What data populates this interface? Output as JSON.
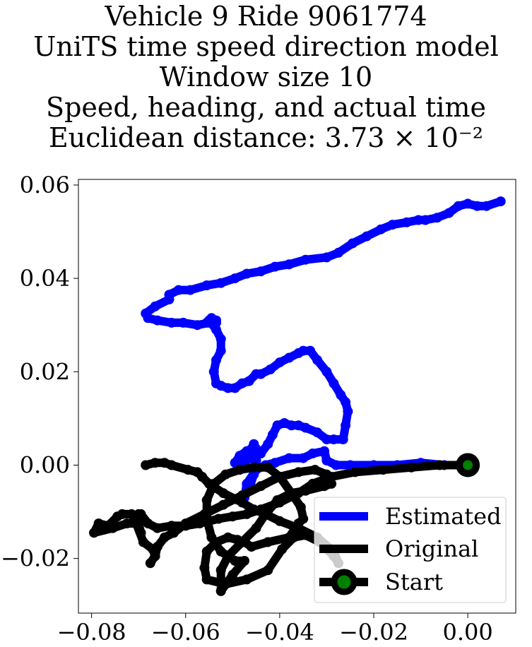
{
  "chart_data": {
    "type": "line",
    "title_lines": [
      "Vehicle 9 Ride 9061774",
      "UniTS time speed direction model",
      "Window size 10",
      "Speed, heading, and actual time",
      "Euclidean distance: 3.73 × 10⁻²"
    ],
    "xlabel": "",
    "ylabel": "",
    "xlim": [
      -0.0828,
      0.0102
    ],
    "ylim": [
      -0.0317,
      0.0612
    ],
    "xticks": [
      -0.08,
      -0.06,
      -0.04,
      -0.02,
      0.0
    ],
    "xtick_labels": [
      "−0.08",
      "−0.06",
      "−0.04",
      "−0.02",
      "0.00"
    ],
    "yticks": [
      -0.02,
      0.0,
      0.02,
      0.04,
      0.06
    ],
    "ytick_labels": [
      "−0.02",
      "0.00",
      "0.02",
      "0.04",
      "0.06"
    ],
    "grid": false,
    "legend_position": "bottom-right",
    "series": [
      {
        "name": "Estimated",
        "color": "#0000ff",
        "x": [
          0.0,
          -0.005,
          -0.01,
          -0.015,
          -0.02,
          -0.025,
          -0.028,
          -0.03,
          -0.0305,
          -0.033,
          -0.035,
          -0.038,
          -0.041,
          -0.043,
          -0.045,
          -0.047,
          -0.0475,
          -0.0465,
          -0.0455,
          -0.045,
          -0.045,
          -0.0455,
          -0.046,
          -0.047,
          -0.0485,
          -0.0495,
          -0.049,
          -0.048,
          -0.046,
          -0.044,
          -0.0425,
          -0.0415,
          -0.0405,
          -0.039,
          -0.0375,
          -0.036,
          -0.0345,
          -0.032,
          -0.03,
          -0.0285,
          -0.0265,
          -0.026,
          -0.0255,
          -0.026,
          -0.027,
          -0.0285,
          -0.03,
          -0.032,
          -0.0335,
          -0.035,
          -0.036,
          -0.038,
          -0.04,
          -0.042,
          -0.044,
          -0.045,
          -0.0465,
          -0.048,
          -0.0495,
          -0.051,
          -0.0525,
          -0.0535,
          -0.054,
          -0.0535,
          -0.0525,
          -0.0525,
          -0.0535,
          -0.055,
          -0.0555,
          -0.0545,
          -0.0545,
          -0.0535,
          -0.0535,
          -0.055,
          -0.0575,
          -0.0605,
          -0.063,
          -0.066,
          -0.068,
          -0.0685,
          -0.0665,
          -0.0635,
          -0.0635,
          -0.0615,
          -0.059,
          -0.0555,
          -0.0525,
          -0.0495,
          -0.047,
          -0.044,
          -0.041,
          -0.038,
          -0.0345,
          -0.03,
          -0.0275,
          -0.0245,
          -0.0215,
          -0.0185,
          -0.016,
          -0.013,
          -0.0105,
          -0.009,
          -0.0065,
          -0.004,
          -0.002,
          0.0,
          0.002,
          0.004,
          0.007
        ],
        "y": [
          0.0,
          0.0,
          0.0005,
          0.0,
          0.0,
          0.0,
          0.0,
          0.001,
          0.003,
          0.0025,
          0.0015,
          0.0015,
          0.0005,
          0.0,
          -0.001,
          -0.004,
          -0.007,
          -0.005,
          -0.002,
          0.001,
          0.0035,
          0.0045,
          0.0035,
          0.003,
          0.002,
          0.0005,
          0.0,
          0.0005,
          0.0015,
          0.0025,
          0.0045,
          0.0065,
          0.0085,
          0.009,
          0.0085,
          0.0085,
          0.008,
          0.007,
          0.0055,
          0.0055,
          0.0055,
          0.0085,
          0.0115,
          0.0135,
          0.015,
          0.0175,
          0.02,
          0.0225,
          0.0245,
          0.0245,
          0.024,
          0.023,
          0.022,
          0.0205,
          0.0195,
          0.0195,
          0.018,
          0.0175,
          0.0165,
          0.0165,
          0.017,
          0.0175,
          0.02,
          0.0225,
          0.0245,
          0.027,
          0.029,
          0.031,
          0.0305,
          0.031,
          0.0315,
          0.031,
          0.0305,
          0.0305,
          0.03,
          0.0305,
          0.0305,
          0.031,
          0.0315,
          0.0325,
          0.034,
          0.0355,
          0.0365,
          0.0375,
          0.0375,
          0.0385,
          0.039,
          0.04,
          0.041,
          0.0415,
          0.0425,
          0.043,
          0.044,
          0.0445,
          0.0455,
          0.0475,
          0.049,
          0.0505,
          0.0515,
          0.052,
          0.0525,
          0.0525,
          0.053,
          0.054,
          0.0555,
          0.056,
          0.0555,
          0.0555,
          0.0565
        ]
      },
      {
        "name": "Original",
        "color": "#000000",
        "x": [
          0.0,
          -0.006,
          -0.012,
          -0.018,
          -0.024,
          -0.029,
          -0.033,
          -0.036,
          -0.04,
          -0.044,
          -0.047,
          -0.05,
          -0.053,
          -0.055,
          -0.057,
          -0.06,
          -0.063,
          -0.066,
          -0.068,
          -0.0695,
          -0.07,
          -0.0695,
          -0.0705,
          -0.07,
          -0.0705,
          -0.0725,
          -0.0755,
          -0.0795,
          -0.0785,
          -0.0765,
          -0.0745,
          -0.0735,
          -0.0715,
          -0.0705,
          -0.069,
          -0.067,
          -0.0665,
          -0.0675,
          -0.0665,
          -0.066,
          -0.0645,
          -0.0625,
          -0.06,
          -0.056,
          -0.052,
          -0.048,
          -0.044,
          -0.04,
          -0.036,
          -0.0325,
          -0.03,
          -0.029,
          -0.0305,
          -0.0345,
          -0.0375,
          -0.0405,
          -0.043,
          -0.045,
          -0.048,
          -0.051,
          -0.0525,
          -0.0525,
          -0.0525,
          -0.05,
          -0.0475,
          -0.0495,
          -0.0525,
          -0.0545,
          -0.0555,
          -0.0555,
          -0.054,
          -0.0515,
          -0.0485,
          -0.0455,
          -0.0425,
          -0.04,
          -0.0375,
          -0.0355,
          -0.035,
          -0.036,
          -0.038,
          -0.0425,
          -0.046,
          -0.0475,
          -0.049,
          -0.051,
          -0.0535,
          -0.0555,
          -0.056,
          -0.0555,
          -0.0515,
          -0.047,
          -0.0425,
          -0.0395,
          -0.037,
          -0.0345,
          -0.0315,
          -0.0285,
          -0.0275,
          -0.0285,
          -0.032,
          -0.036,
          -0.04,
          -0.043,
          -0.0455,
          -0.048,
          -0.052,
          -0.055,
          -0.0565,
          -0.0575,
          -0.0595,
          -0.063,
          -0.0645,
          -0.0665,
          -0.0685
        ],
        "y": [
          0.0,
          0.0,
          -0.0005,
          -0.001,
          -0.0015,
          -0.0025,
          -0.004,
          -0.006,
          -0.008,
          -0.0095,
          -0.0105,
          -0.011,
          -0.0115,
          -0.012,
          -0.0125,
          -0.013,
          -0.013,
          -0.0135,
          -0.0125,
          -0.0105,
          -0.0125,
          -0.0145,
          -0.0115,
          -0.0105,
          -0.0125,
          -0.0125,
          -0.0135,
          -0.0145,
          -0.0125,
          -0.013,
          -0.011,
          -0.0105,
          -0.0105,
          -0.0125,
          -0.0165,
          -0.018,
          -0.0195,
          -0.021,
          -0.0195,
          -0.0175,
          -0.0155,
          -0.0145,
          -0.0125,
          -0.0105,
          -0.0085,
          -0.0065,
          -0.0045,
          -0.0025,
          -0.0015,
          -0.001,
          -0.002,
          -0.004,
          -0.0045,
          -0.0055,
          -0.006,
          -0.0075,
          -0.0105,
          -0.0135,
          -0.0165,
          -0.0195,
          -0.0225,
          -0.025,
          -0.027,
          -0.0235,
          -0.0205,
          -0.0205,
          -0.0185,
          -0.0155,
          -0.0115,
          -0.0075,
          -0.004,
          -0.002,
          -0.001,
          -0.0005,
          -0.0005,
          -0.0025,
          -0.006,
          -0.009,
          -0.0115,
          -0.0125,
          -0.0155,
          -0.0165,
          -0.0175,
          -0.0165,
          -0.016,
          -0.0155,
          -0.0165,
          -0.0185,
          -0.022,
          -0.0245,
          -0.0255,
          -0.0245,
          -0.0225,
          -0.018,
          -0.0155,
          -0.015,
          -0.0165,
          -0.0195,
          -0.021,
          -0.0185,
          -0.0155,
          -0.0135,
          -0.012,
          -0.0105,
          -0.0095,
          -0.008,
          -0.006,
          -0.004,
          -0.0025,
          -0.0015,
          -0.001,
          0.0,
          0.0005,
          0.0005,
          0.0
        ]
      }
    ],
    "start_point": {
      "name": "Start",
      "x": 0.0,
      "y": 0.0,
      "marker_face": "#008000",
      "marker_edge": "#000000"
    },
    "legend": {
      "entries": [
        "Estimated",
        "Original",
        "Start"
      ]
    }
  }
}
